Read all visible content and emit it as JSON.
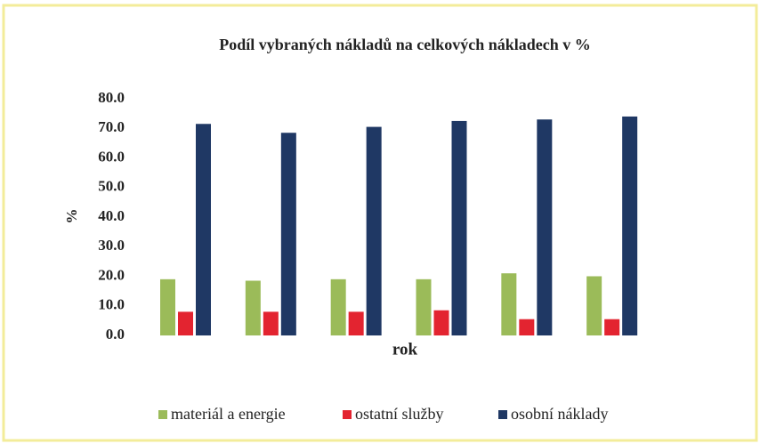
{
  "chart_data": {
    "type": "bar",
    "title": "Podíl vybraných nákladů na celkových nákladech v %",
    "x_label": "rok",
    "y_label": "%",
    "categories": [
      null,
      null,
      null,
      null,
      null,
      null
    ],
    "series": [
      {
        "name": "materiál a energie",
        "color": "#9bbb59",
        "values": [
          19,
          18.5,
          19,
          19,
          21,
          20
        ]
      },
      {
        "name": "ostatní služby",
        "color": "#e32430",
        "values": [
          8,
          8,
          8,
          8.5,
          5.5,
          5.5
        ]
      },
      {
        "name": "osobní náklady",
        "color": "#1f3864",
        "values": [
          71.5,
          68.5,
          70.5,
          72.5,
          73,
          74
        ]
      }
    ],
    "ylim": [
      0,
      80
    ],
    "yticks": [
      {
        "value": 0,
        "label": "0.0"
      },
      {
        "value": 10,
        "label": "10.0"
      },
      {
        "value": 20,
        "label": "20.0"
      },
      {
        "value": 30,
        "label": "30.0"
      },
      {
        "value": 40,
        "label": "40.0"
      },
      {
        "value": 50,
        "label": "50.0"
      },
      {
        "value": 60,
        "label": "60.0"
      },
      {
        "value": 70,
        "label": "70.0"
      },
      {
        "value": 80,
        "label": "80.0"
      }
    ],
    "grid": false,
    "legend": "bottom"
  }
}
